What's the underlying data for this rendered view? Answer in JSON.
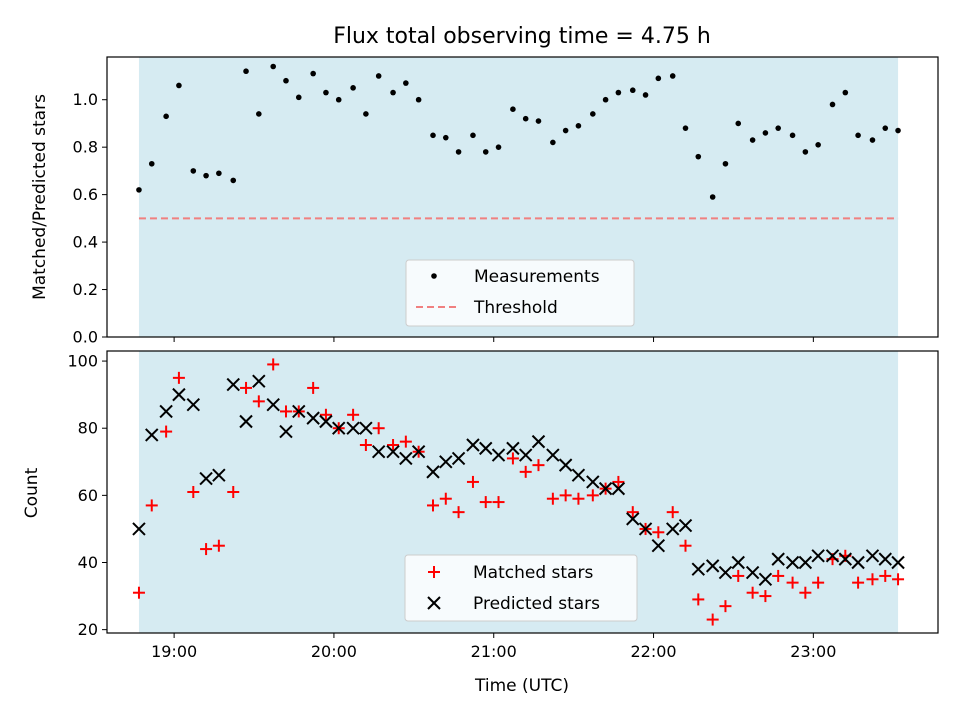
{
  "chart_data": [
    {
      "type": "scatter",
      "title": "Flux total observing time = 4.75 h",
      "ylabel": "Matched/Predicted stars",
      "xlim_hours": [
        18.58,
        23.78
      ],
      "ylim": [
        0,
        1.18
      ],
      "yticks": [
        "0.0",
        "0.2",
        "0.4",
        "0.6",
        "0.8",
        "1.0"
      ],
      "shaded_span_hours": [
        18.78,
        23.53
      ],
      "threshold": 0.5,
      "legend": {
        "placement": "lower center",
        "entries": [
          "Measurements",
          "Threshold"
        ]
      },
      "series": [
        {
          "name": "Measurements",
          "color": "#000000",
          "x": [
            18.78,
            18.86,
            18.95,
            19.03,
            19.12,
            19.2,
            19.28,
            19.37,
            19.45,
            19.53,
            19.62,
            19.7,
            19.78,
            19.87,
            19.95,
            20.03,
            20.12,
            20.2,
            20.28,
            20.37,
            20.45,
            20.53,
            20.62,
            20.7,
            20.78,
            20.87,
            20.95,
            21.03,
            21.12,
            21.2,
            21.28,
            21.37,
            21.45,
            21.53,
            21.62,
            21.7,
            21.78,
            21.87,
            21.95,
            22.03,
            22.12,
            22.2,
            22.28,
            22.37,
            22.45,
            22.53,
            22.62,
            22.7,
            22.78,
            22.87,
            22.95,
            23.03,
            23.12,
            23.2,
            23.28,
            23.37,
            23.45,
            23.53
          ],
          "y": [
            0.62,
            0.73,
            0.93,
            1.06,
            0.7,
            0.68,
            0.69,
            0.66,
            1.12,
            0.94,
            1.14,
            1.08,
            1.01,
            1.11,
            1.03,
            1.0,
            1.05,
            0.94,
            1.1,
            1.03,
            1.07,
            1.0,
            0.85,
            0.84,
            0.78,
            0.85,
            0.78,
            0.8,
            0.96,
            0.92,
            0.91,
            0.82,
            0.87,
            0.89,
            0.94,
            1.0,
            1.03,
            1.04,
            1.02,
            1.09,
            1.1,
            0.88,
            0.76,
            0.59,
            0.73,
            0.9,
            0.83,
            0.86,
            0.88,
            0.85,
            0.78,
            0.81,
            0.98,
            1.03,
            0.85,
            0.83,
            0.88,
            0.87
          ]
        },
        {
          "name": "Threshold",
          "color": "#f08080",
          "x": [
            18.78,
            23.53
          ],
          "y": [
            0.5,
            0.5
          ]
        }
      ]
    },
    {
      "type": "scatter",
      "xlabel": "Time (UTC)",
      "ylabel": "Count",
      "xlim_hours": [
        18.58,
        23.78
      ],
      "ylim": [
        19,
        103
      ],
      "yticks": [
        "20",
        "40",
        "60",
        "80",
        "100"
      ],
      "xticks": [
        "19:00",
        "20:00",
        "21:00",
        "22:00",
        "23:00"
      ],
      "xtick_hours": [
        19,
        20,
        21,
        22,
        23
      ],
      "shaded_span_hours": [
        18.78,
        23.53
      ],
      "legend": {
        "placement": "lower center",
        "entries": [
          "Matched stars",
          "Predicted stars"
        ]
      },
      "series": [
        {
          "name": "Matched stars",
          "color": "#ff0000",
          "x": [
            18.78,
            18.86,
            18.95,
            19.03,
            19.12,
            19.2,
            19.28,
            19.37,
            19.45,
            19.53,
            19.62,
            19.7,
            19.78,
            19.87,
            19.95,
            20.03,
            20.12,
            20.2,
            20.28,
            20.37,
            20.45,
            20.53,
            20.62,
            20.7,
            20.78,
            20.87,
            20.95,
            21.03,
            21.12,
            21.2,
            21.28,
            21.37,
            21.45,
            21.53,
            21.62,
            21.7,
            21.78,
            21.87,
            21.95,
            22.03,
            22.12,
            22.2,
            22.28,
            22.37,
            22.45,
            22.53,
            22.62,
            22.7,
            22.78,
            22.87,
            22.95,
            23.03,
            23.12,
            23.2,
            23.28,
            23.37,
            23.45,
            23.53
          ],
          "y": [
            31,
            57,
            79,
            95,
            61,
            44,
            45,
            61,
            92,
            88,
            99,
            85,
            85,
            92,
            84,
            80,
            84,
            75,
            80,
            75,
            76,
            73,
            57,
            59,
            55,
            64,
            58,
            58,
            71,
            67,
            69,
            59,
            60,
            59,
            60,
            62,
            64,
            55,
            50,
            49,
            55,
            45,
            29,
            23,
            27,
            36,
            31,
            30,
            36,
            34,
            31,
            34,
            41,
            42,
            34,
            35,
            36,
            35
          ]
        },
        {
          "name": "Predicted stars",
          "color": "#000000",
          "x": [
            18.78,
            18.86,
            18.95,
            19.03,
            19.12,
            19.2,
            19.28,
            19.37,
            19.45,
            19.53,
            19.62,
            19.7,
            19.78,
            19.87,
            19.95,
            20.03,
            20.12,
            20.2,
            20.28,
            20.37,
            20.45,
            20.53,
            20.62,
            20.7,
            20.78,
            20.87,
            20.95,
            21.03,
            21.12,
            21.2,
            21.28,
            21.37,
            21.45,
            21.53,
            21.62,
            21.7,
            21.78,
            21.87,
            21.95,
            22.03,
            22.12,
            22.2,
            22.28,
            22.37,
            22.45,
            22.53,
            22.62,
            22.7,
            22.78,
            22.87,
            22.95,
            23.03,
            23.12,
            23.2,
            23.28,
            23.37,
            23.45,
            23.53
          ],
          "y": [
            50,
            78,
            85,
            90,
            87,
            65,
            66,
            93,
            82,
            94,
            87,
            79,
            85,
            83,
            82,
            80,
            80,
            80,
            73,
            73,
            71,
            73,
            67,
            70,
            71,
            75,
            74,
            72,
            74,
            72,
            76,
            72,
            69,
            66,
            64,
            62,
            62,
            53,
            50,
            45,
            50,
            51,
            38,
            39,
            37,
            40,
            37,
            35,
            41,
            40,
            40,
            42,
            42,
            41,
            40,
            42,
            41,
            40
          ]
        }
      ]
    }
  ]
}
